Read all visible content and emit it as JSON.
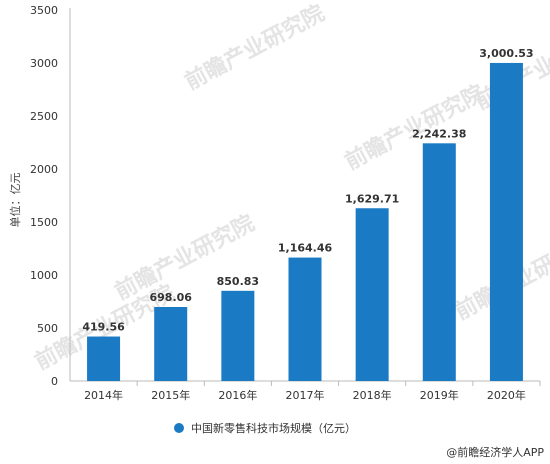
{
  "chart_data": {
    "type": "bar",
    "categories": [
      "2014年",
      "2015年",
      "2016年",
      "2017年",
      "2018年",
      "2019年",
      "2020年"
    ],
    "series": [
      {
        "name": "中国新零售科技市场规模（亿元）",
        "values": [
          419.56,
          698.06,
          850.83,
          1164.46,
          1629.71,
          2242.38,
          3000.53
        ],
        "labels": [
          "419.56",
          "698.06",
          "850.83",
          "1,164.46",
          "1,629.71",
          "2,242.38",
          "3,000.53"
        ]
      }
    ],
    "ylabel": "单位：亿元",
    "ylim": [
      0,
      3500
    ],
    "yticks": [
      0,
      500,
      1000,
      1500,
      2000,
      2500,
      3000,
      3500
    ],
    "legend_position": "bottom",
    "grid": false,
    "bar_color": "#1a7ac4"
  },
  "watermark": "前瞻产业研究院",
  "source": "@前瞻经济学人APP"
}
